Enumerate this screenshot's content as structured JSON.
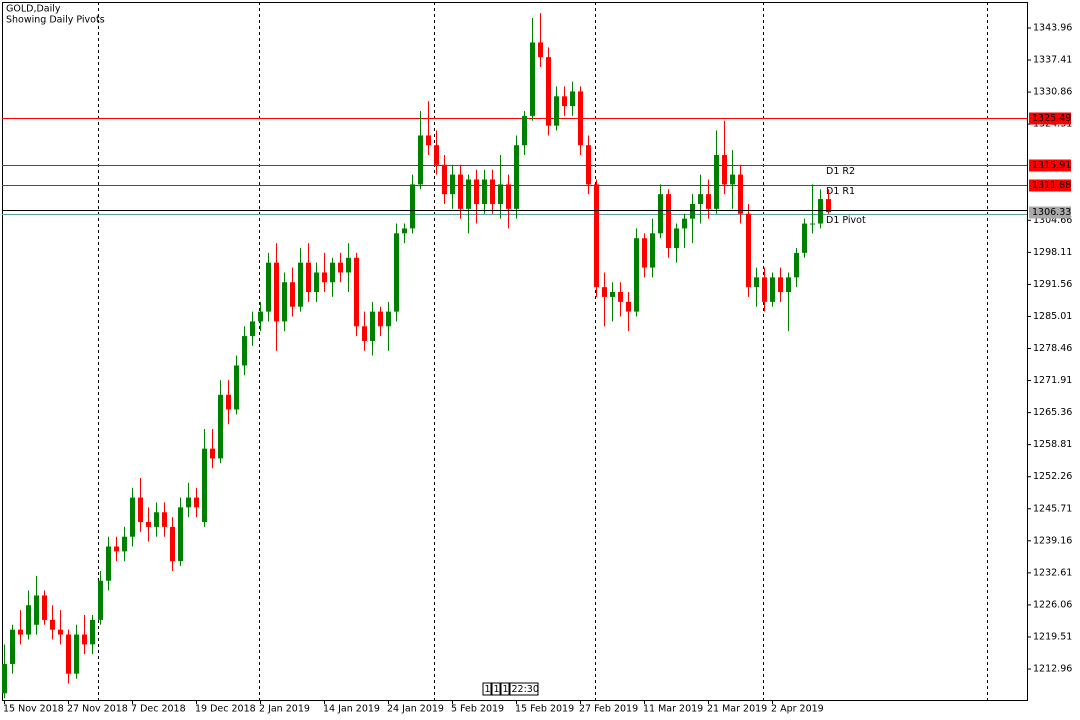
{
  "chart_data": {
    "type": "candlestick",
    "title": "GOLD,Daily",
    "subtitle": "Showing Daily Pivots",
    "categories": [
      "15 Nov 2018",
      null,
      null,
      null,
      null,
      null,
      null,
      null,
      "27 Nov 2018",
      null,
      null,
      null,
      null,
      null,
      null,
      null,
      "7 Dec 2018",
      null,
      null,
      null,
      null,
      null,
      null,
      null,
      "19 Dec 2018",
      null,
      null,
      null,
      null,
      null,
      null,
      null,
      "2 Jan 2019",
      null,
      null,
      null,
      null,
      null,
      null,
      null,
      "14 Jan 2019",
      null,
      null,
      null,
      null,
      null,
      null,
      null,
      "24 Jan 2019",
      null,
      null,
      null,
      null,
      null,
      null,
      null,
      "5 Feb 2019",
      null,
      null,
      null,
      null,
      null,
      null,
      null,
      "15 Feb 2019",
      null,
      null,
      null,
      null,
      null,
      null,
      null,
      "27 Feb 2019",
      null,
      null,
      null,
      null,
      null,
      null,
      null,
      "11 Mar 2019",
      null,
      null,
      null,
      null,
      null,
      null,
      null,
      "21 Mar 2019",
      null,
      null,
      null,
      null,
      null,
      null,
      null,
      "2 Apr 2019",
      null,
      null,
      null,
      null,
      null,
      null,
      null
    ],
    "open": [
      1208,
      1214,
      1221,
      1220,
      1222,
      1228,
      1223,
      1221,
      1220,
      1212,
      1220,
      1218,
      1223,
      1231,
      1238,
      1237,
      1240,
      1248,
      1243,
      1242,
      1245,
      1242,
      1235,
      1246,
      1248,
      1243,
      1258,
      1256,
      1269,
      1266,
      1275,
      1281,
      1284,
      1286,
      1296,
      1284,
      1292,
      1287,
      1296,
      1290,
      1294,
      1292,
      1296,
      1294,
      1297,
      1283,
      1280,
      1286,
      1283,
      1286,
      1302,
      1303,
      1312,
      1322,
      1320,
      1316,
      1310,
      1314,
      1307,
      1313,
      1308,
      1313,
      1308,
      1312,
      1307,
      1320,
      1326,
      1341,
      1338,
      1324,
      1330,
      1328,
      1331,
      1320,
      1312,
      1291,
      1289,
      1290,
      1288,
      1286,
      1301,
      1295,
      1302,
      1310,
      1299,
      1303,
      1305,
      1308,
      1310,
      1307,
      1318,
      1312,
      1314,
      1306,
      1291,
      1293,
      1288,
      1293,
      1290,
      1293,
      1298,
      1304,
      1304,
      1309
    ],
    "high": [
      1218,
      1222,
      1225,
      1229,
      1232,
      1229,
      1226,
      1225,
      1221,
      1222,
      1224,
      1224,
      1233,
      1240,
      1240,
      1242,
      1250,
      1252,
      1246,
      1247,
      1247,
      1244,
      1248,
      1251,
      1250,
      1262,
      1262,
      1272,
      1272,
      1277,
      1283,
      1286,
      1288,
      1298,
      1300,
      1294,
      1295,
      1299,
      1300,
      1296,
      1298,
      1297,
      1298,
      1300,
      1298,
      1286,
      1288,
      1287,
      1288,
      1304,
      1304,
      1314,
      1327,
      1329,
      1323,
      1318,
      1316,
      1316,
      1314,
      1315,
      1315,
      1315,
      1318,
      1314,
      1322,
      1327,
      1346,
      1347,
      1340,
      1332,
      1332,
      1333,
      1332,
      1322,
      1313,
      1294,
      1292,
      1292,
      1290,
      1303,
      1302,
      1305,
      1312,
      1311,
      1304,
      1306,
      1310,
      1314,
      1313,
      1323,
      1325,
      1319,
      1316,
      1308,
      1295,
      1295,
      1294,
      1295,
      1294,
      1299,
      1305,
      1312,
      1311,
      1311
    ],
    "low": [
      1207,
      1212,
      1218,
      1219,
      1220,
      1222,
      1219,
      1218,
      1210,
      1211,
      1216,
      1216,
      1222,
      1229,
      1235,
      1235,
      1238,
      1241,
      1239,
      1240,
      1240,
      1233,
      1234,
      1244,
      1244,
      1242,
      1254,
      1255,
      1263,
      1265,
      1273,
      1279,
      1282,
      1284,
      1278,
      1282,
      1285,
      1286,
      1288,
      1288,
      1290,
      1289,
      1292,
      1290,
      1281,
      1278,
      1277,
      1281,
      1278,
      1284,
      1300,
      1302,
      1311,
      1318,
      1314,
      1308,
      1307,
      1305,
      1302,
      1304,
      1306,
      1306,
      1305,
      1303,
      1305,
      1318,
      1325,
      1336,
      1322,
      1323,
      1326,
      1326,
      1318,
      1310,
      1289,
      1283,
      1284,
      1285,
      1282,
      1285,
      1293,
      1293,
      1301,
      1297,
      1296,
      1299,
      1300,
      1304,
      1305,
      1306,
      1310,
      1307,
      1304,
      1289,
      1287,
      1286,
      1287,
      1288,
      1282,
      1291,
      1297,
      1302,
      1303,
      1306
    ],
    "close": [
      1214,
      1221,
      1220,
      1226,
      1228,
      1223,
      1221,
      1220,
      1212,
      1220,
      1218,
      1223,
      1231,
      1238,
      1237,
      1240,
      1248,
      1243,
      1242,
      1245,
      1242,
      1235,
      1246,
      1248,
      1246,
      1258,
      1256,
      1269,
      1266,
      1275,
      1281,
      1284,
      1286,
      1296,
      1284,
      1292,
      1287,
      1296,
      1290,
      1294,
      1292,
      1296,
      1294,
      1297,
      1283,
      1280,
      1286,
      1283,
      1286,
      1302,
      1303,
      1312,
      1322,
      1320,
      1316,
      1310,
      1314,
      1307,
      1313,
      1308,
      1313,
      1308,
      1312,
      1307,
      1320,
      1326,
      1341,
      1338,
      1324,
      1330,
      1328,
      1331,
      1320,
      1312,
      1291,
      1289,
      1290,
      1288,
      1286,
      1301,
      1295,
      1302,
      1310,
      1299,
      1303,
      1305,
      1308,
      1310,
      1307,
      1318,
      1312,
      1314,
      1306,
      1291,
      1293,
      1288,
      1293,
      1290,
      1293,
      1298,
      1304,
      1304,
      1309,
      1306.33
    ],
    "up_color": "#008000",
    "down_color": "#ff0000",
    "ylim": [
      1206.63,
      1349.68
    ],
    "yticks": [
      1343.96,
      1337.41,
      1330.86,
      1324.31,
      1304.66,
      1298.11,
      1291.56,
      1285.01,
      1278.46,
      1271.91,
      1265.36,
      1258.81,
      1252.26,
      1245.71,
      1239.16,
      1232.61,
      1226.06,
      1219.51,
      1212.96
    ],
    "levels": [
      {
        "value": 1325.49,
        "color": "#ff0000"
      },
      {
        "name": "D1 R2",
        "value": 1315.91,
        "color": "#ff0000"
      },
      {
        "name": "D1 R1",
        "value": 1311.88,
        "color": "#ff0000"
      },
      {
        "name": "D1 Pivot",
        "value": 1305.9,
        "color": "#5f9ea0"
      }
    ],
    "price_line_color": "#000000",
    "status_boxes": [
      "1",
      "1",
      "1",
      "22:30"
    ]
  }
}
